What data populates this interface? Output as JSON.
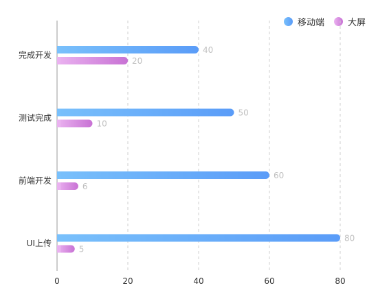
{
  "chart_data": {
    "type": "bar",
    "orientation": "horizontal",
    "categories": [
      "完成开发",
      "测试完成",
      "前端开发",
      "UI上传"
    ],
    "series": [
      {
        "name": "移动端",
        "values": [
          40,
          50,
          60,
          80
        ],
        "color": "#5a9cf8",
        "color_light": "#79c0fb"
      },
      {
        "name": "大屏",
        "values": [
          20,
          10,
          6,
          5
        ],
        "color": "#c872d4",
        "color_light": "#eab2f0"
      }
    ],
    "x_ticks": [
      0,
      20,
      40,
      60,
      80
    ],
    "xlim": [
      0,
      80
    ],
    "grid": "vertical dashed",
    "legend": "top-right",
    "data_labels": true,
    "label_color": "#c0c0c0",
    "axis_text_color": "#333333"
  }
}
